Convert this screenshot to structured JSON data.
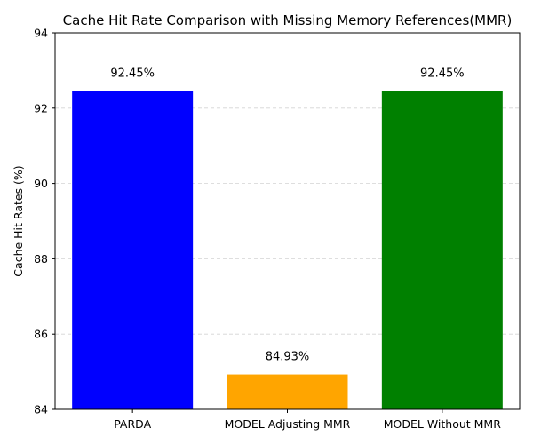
{
  "chart_data": {
    "type": "bar",
    "title": "Cache Hit Rate Comparison with Missing Memory References(MMR)",
    "xlabel": "",
    "ylabel": "Cache Hit Rates (%)",
    "categories": [
      "PARDA",
      "MODEL Adjusting MMR",
      "MODEL Without MMR"
    ],
    "values": [
      92.45,
      84.93,
      92.45
    ],
    "data_labels": [
      "92.45%",
      "84.93%",
      "92.45%"
    ],
    "colors": [
      "#0000ff",
      "#ffa500",
      "#008000"
    ],
    "ylim": [
      84,
      94
    ],
    "yticks": [
      84,
      86,
      88,
      90,
      92,
      94
    ],
    "ytick_labels": [
      "84",
      "86",
      "88",
      "90",
      "92",
      "94"
    ],
    "grid": "horizontal dashed",
    "legend": "none"
  }
}
